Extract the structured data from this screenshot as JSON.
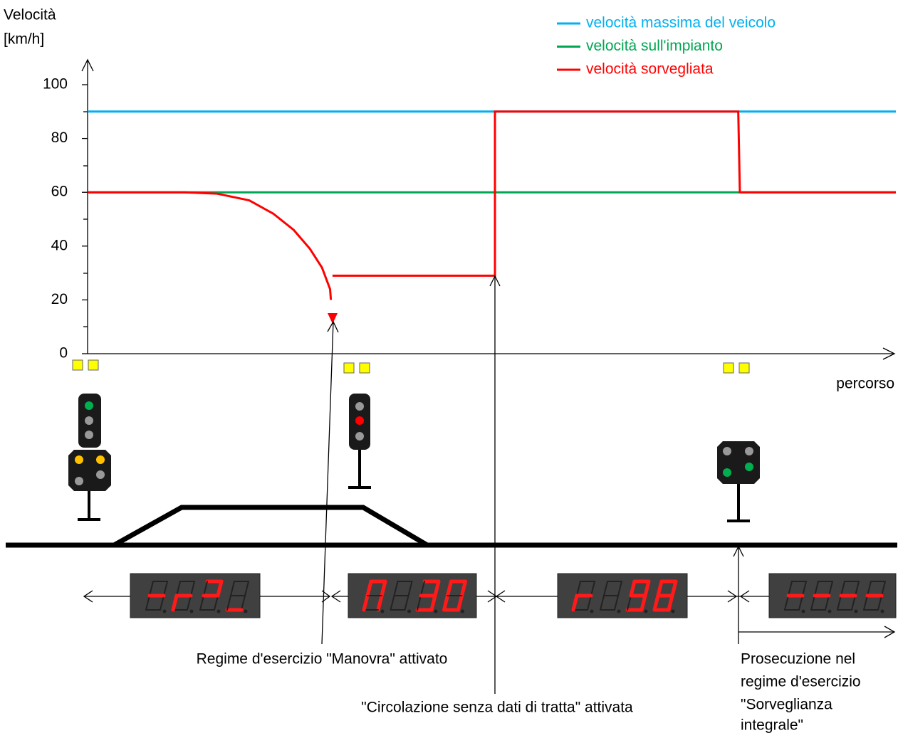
{
  "chart_data": {
    "type": "line",
    "y_label": [
      "Velocità",
      "[km/h]"
    ],
    "x_label": "percorso",
    "ylim": [
      0,
      100
    ],
    "yticks": [
      0,
      20,
      40,
      60,
      80,
      100
    ],
    "xlim": [
      0,
      100
    ],
    "legend": "top-right",
    "series": [
      {
        "name": "velocità massima del veicolo",
        "color": "#00b0f0",
        "x": [
          0,
          100
        ],
        "values": [
          90,
          90
        ]
      },
      {
        "name": "velocità sull'impianto",
        "color": "#00a651",
        "x": [
          0,
          100
        ],
        "values": [
          60,
          60
        ]
      },
      {
        "name": "velocità sorvegliata",
        "color": "#ff0000",
        "x": [
          0,
          12,
          16,
          20,
          23,
          25.5,
          27.5,
          29,
          30,
          30.1,
          null,
          30.3,
          50.4,
          50.4,
          80.5,
          80.7,
          100
        ],
        "values": [
          60,
          60,
          59.5,
          57,
          52,
          46,
          39,
          32,
          24,
          20,
          null,
          29,
          29,
          90,
          90,
          60,
          60
        ]
      }
    ]
  },
  "annotations": {
    "manovra": "Regime d'esercizio \"Manovra\" attivato",
    "circolazione": "\"Circolazione senza dati di tratta\" attivata",
    "prosecuzione": [
      "Prosecuzione nel",
      "regime d'esercizio",
      "\"Sorveglianza",
      "integrale\""
    ]
  }
}
